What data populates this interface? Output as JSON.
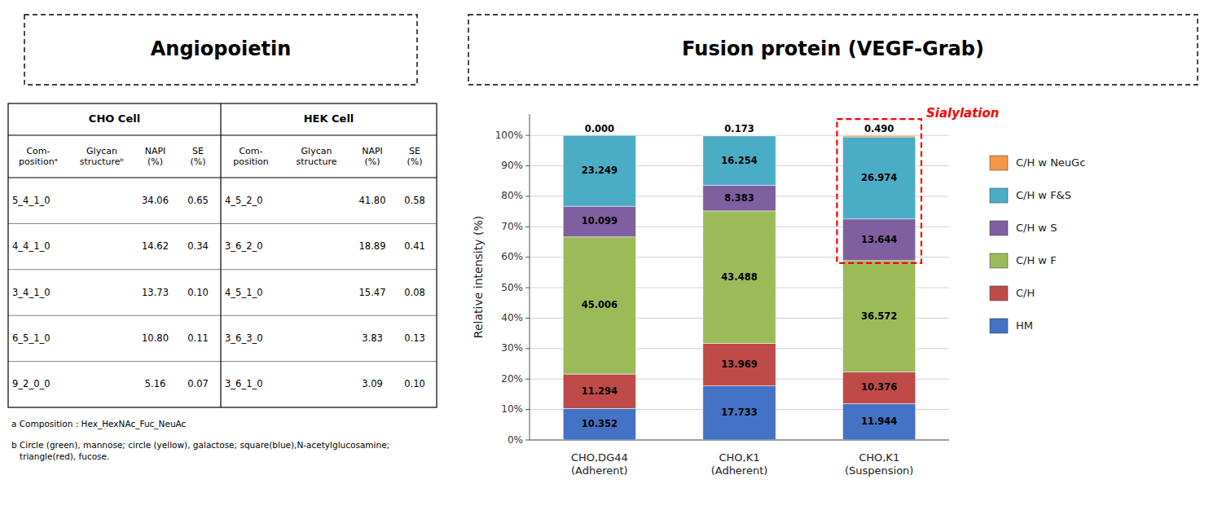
{
  "chart_data": [
    {
      "type": "table",
      "title": "Angiopoietin",
      "groups": [
        {
          "name": "CHO Cell",
          "columns": [
            "Com-\npositionᵃ",
            "Glycan\nstructureᵇ",
            "NAPI\n(%)",
            "SE\n(%)"
          ],
          "rows": [
            {
              "comp": "5_4_1_0",
              "napi": "34.06",
              "se": "0.65"
            },
            {
              "comp": "4_4_1_0",
              "napi": "14.62",
              "se": "0.34"
            },
            {
              "comp": "3_4_1_0",
              "napi": "13.73",
              "se": "0.10"
            },
            {
              "comp": "6_5_1_0",
              "napi": "10.80",
              "se": "0.11"
            },
            {
              "comp": "9_2_0_0",
              "napi": "5.16",
              "se": "0.07"
            }
          ]
        },
        {
          "name": "HEK Cell",
          "columns": [
            "Com-\nposition",
            "Glycan\nstructure",
            "NAPI\n(%)",
            "SE\n(%)"
          ],
          "rows": [
            {
              "comp": "4_5_2_0",
              "napi": "41.80",
              "se": "0.58"
            },
            {
              "comp": "3_6_2_0",
              "napi": "18.89",
              "se": "0.41"
            },
            {
              "comp": "4_5_1_0",
              "napi": "15.47",
              "se": "0.08"
            },
            {
              "comp": "3_6_3_0",
              "napi": "3.83",
              "se": "0.13"
            },
            {
              "comp": "3_6_1_0",
              "napi": "3.09",
              "se": "0.10"
            }
          ]
        }
      ],
      "notes": [
        "a Composition : Hex_HexNAc_Fuc_NeuAc",
        "b Circle (green), mannose; circle (yellow), galactose; square(blue),N-acetylglucosamine;\n   triangle(red), fucose."
      ]
    },
    {
      "type": "bar",
      "title": "Fusion protein (VEGF-Grab)",
      "stacked": true,
      "categories": [
        "CHO,DG44\n(Adherent)",
        "CHO,K1\n(Adherent)",
        "CHO,K1\n(Suspension)"
      ],
      "series": [
        {
          "name": "HM",
          "color": "#4472C4",
          "values": [
            10.352,
            17.733,
            11.944
          ]
        },
        {
          "name": "C/H",
          "color": "#BE4B48",
          "values": [
            11.294,
            13.969,
            10.376
          ]
        },
        {
          "name": "C/H w F",
          "color": "#9BBB59",
          "values": [
            45.006,
            43.488,
            36.572
          ]
        },
        {
          "name": "C/H w S",
          "color": "#7F5FA0",
          "values": [
            10.099,
            8.383,
            13.644
          ]
        },
        {
          "name": "C/H w F&S",
          "color": "#4BACC6",
          "values": [
            23.249,
            16.254,
            26.974
          ]
        },
        {
          "name": "C/H w NeuGc",
          "color": "#F79646",
          "values": [
            0,
            0.173,
            0.49
          ],
          "value_labels": [
            "0.000",
            "0.173",
            "0.490"
          ]
        }
      ],
      "ylabel": "Relative intensity (%)",
      "ylim": [
        0,
        107
      ],
      "yticks": [
        {
          "value": 0,
          "label": "0%"
        },
        {
          "value": 10,
          "label": "10%"
        },
        {
          "value": 20,
          "label": "20%"
        },
        {
          "value": 30,
          "label": "30%"
        },
        {
          "value": 40,
          "label": "40%"
        },
        {
          "value": 50,
          "label": "50%"
        },
        {
          "value": 60,
          "label": "60%"
        },
        {
          "value": 70,
          "label": "70%"
        },
        {
          "value": 80,
          "label": "80%"
        },
        {
          "value": 90,
          "label": "90%"
        },
        {
          "value": 100,
          "label": "100%"
        }
      ],
      "grid": true,
      "legend": "right",
      "data_labels": true,
      "annotations": [
        {
          "text": "Sialylation",
          "category": 2,
          "series": [
            3,
            4,
            5
          ],
          "color": "red"
        }
      ]
    }
  ]
}
